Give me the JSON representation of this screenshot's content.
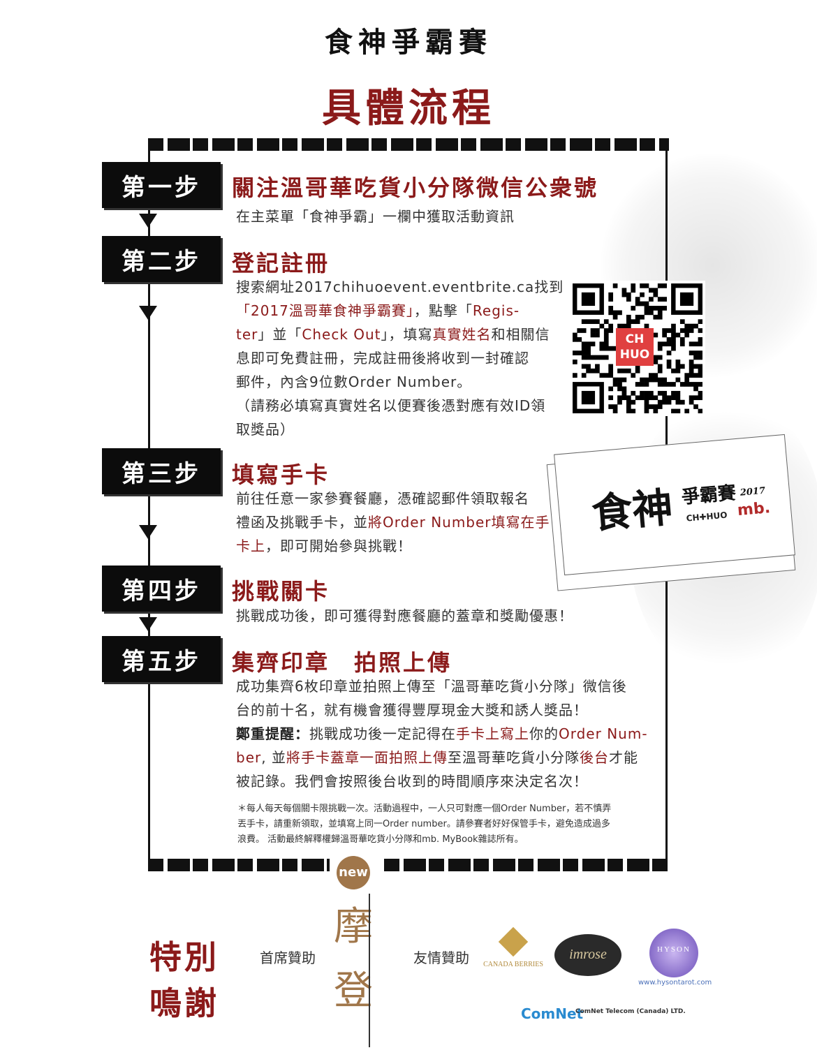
{
  "header": {
    "title": "食神爭霸賽",
    "main_title": "具體流程"
  },
  "steps": [
    {
      "tab": "第一步",
      "title_part1": "關注溫哥華吃貨小分隊",
      "title_part2": "微信公衆號",
      "text": "在主菜單「食神爭霸」一欄中獲取活動資訊"
    },
    {
      "tab": "第二步",
      "title": "登記註冊",
      "l1a": "搜索網址2017chihuoevent.eventbrite.ca找到",
      "l2a": "「2017溫哥華食神爭霸賽」",
      "l2b": "，點擊「",
      "l2c": "Regis-",
      "l3a": "ter",
      "l3b": "」並「",
      "l3c": "Check Out",
      "l3d": "」，填寫",
      "l3e": "真實姓名",
      "l3f": "和相關信",
      "l4": "息即可免費註冊，完成註冊後將收到一封確認",
      "l5": "郵件，內含9位數Order Number。",
      "l6": "（請務必填寫真實姓名以便賽後憑對應有效ID領",
      "l7": "取獎品）"
    },
    {
      "tab": "第三步",
      "title": "填寫手卡",
      "l1": "前往任意一家參賽餐廳，憑確認郵件領取報名",
      "l2a": "禮函及挑戰手卡，並",
      "l2b": "將Order Number填寫在手",
      "l3a": "卡上",
      "l3b": "，即可開始參與挑戰！"
    },
    {
      "tab": "第四步",
      "title": "挑戰關卡",
      "text": "挑戰成功後，即可獲得對應餐廳的蓋章和獎勵優惠！"
    },
    {
      "tab": "第五步",
      "title": "集齊印章　拍照上傳",
      "l1": "成功集齊6枚印章並拍照上傳至「溫哥華吃貨小分隊」微信後",
      "l2": "台的前十名，就有機會獲得豐厚現金大獎和誘人獎品！",
      "l3a": "鄭重提醒：",
      "l3b": "挑戰成功後一定記得在",
      "l3c": "手卡上寫上",
      "l3d": "你的",
      "l3e": "Order Num-",
      "l4a": "ber",
      "l4b": ", 並",
      "l4c": "將手卡蓋章一面拍照上傳",
      "l4d": "至溫哥華吃貨小分隊",
      "l4e": "後台",
      "l4f": "才能",
      "l5": "被記錄。我們會按照後台收到的時間順序來決定名次！"
    }
  ],
  "note": {
    "l1": "＊每人每天每個關卡限挑戰一次。活動過程中，一人只可對應一個Order Number，若不慎弄",
    "l2": "丟手卡，請重新領取，並填寫上同一Order number。請參賽者好好保管手卡，避免造成過多",
    "l3": "浪費。 活動最終解釋權歸溫哥華吃貨小分隊和mb. MyBook雜誌所有。"
  },
  "qr": {
    "logo_top": "CH",
    "logo_bottom": "HUO"
  },
  "card": {
    "title": "食神",
    "subtitle": "爭霸賽",
    "year": "2017",
    "brand1": "CH✚HUO",
    "brand2": "mb."
  },
  "thanks": {
    "title_l1": "特別",
    "title_l2": "鳴謝",
    "primary_label": "首席贊助",
    "friend_label": "友情贊助",
    "mobook_new": "new",
    "mobook_name": "摩登",
    "canada_berries": "CANADA BERRIES",
    "imrose": "imrose",
    "hyson": "HYSON",
    "hyson_url": "www.hysontarot.com",
    "comnet": "ComNet",
    "comnet_full": "ComNet Telecom (Canada) LTD."
  },
  "colors": {
    "accent": "#8b1a1a",
    "ink": "#111111"
  }
}
